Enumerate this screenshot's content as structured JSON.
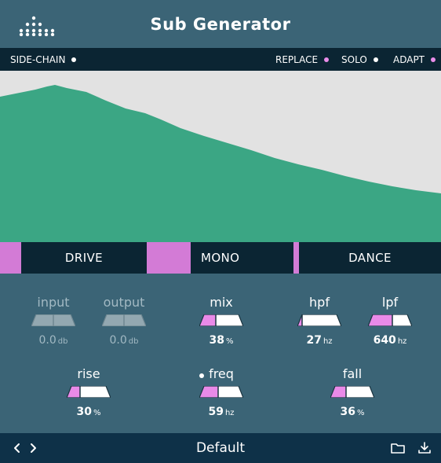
{
  "app": {
    "title": "Sub Generator",
    "logo_icon": "dot-grid-logo-icon"
  },
  "options": {
    "side_chain": {
      "label": "SIDE-CHAIN",
      "indicator": "white"
    },
    "replace": {
      "label": "REPLACE",
      "indicator": "pink"
    },
    "solo": {
      "label": "SOLO",
      "indicator": "white"
    },
    "adapt": {
      "label": "ADAPT",
      "indicator": "pink"
    }
  },
  "colors": {
    "background": "#3b6476",
    "bar": "#0b2533",
    "accent": "#d37bd6",
    "spectrum_fill": "#3ba684",
    "spectrum_bg": "#e2e2e2"
  },
  "modes": [
    {
      "label": "DRIVE",
      "active": false
    },
    {
      "label": "MONO",
      "active": true
    },
    {
      "label": "DANCE",
      "active": false
    }
  ],
  "controls": {
    "input": {
      "label": "input",
      "value": "0.0",
      "unit": "db",
      "level": 0.5,
      "enabled": false
    },
    "output": {
      "label": "output",
      "value": "0.0",
      "unit": "db",
      "level": 0.5,
      "enabled": false
    },
    "mix": {
      "label": "mix",
      "value": "38",
      "unit": "%",
      "level": 0.38,
      "enabled": true
    },
    "hpf": {
      "label": "hpf",
      "value": "27",
      "unit": "hz",
      "level": 0.1,
      "enabled": true
    },
    "lpf": {
      "label": "lpf",
      "value": "640",
      "unit": "hz",
      "level": 0.55,
      "enabled": true
    },
    "rise": {
      "label": "rise",
      "value": "30",
      "unit": "%",
      "level": 0.3,
      "enabled": true
    },
    "freq": {
      "label": "freq",
      "value": "59",
      "unit": "hz",
      "level": 0.42,
      "enabled": true
    },
    "fall": {
      "label": "fall",
      "value": "36",
      "unit": "%",
      "level": 0.36,
      "enabled": true
    }
  },
  "footer": {
    "preset": "Default",
    "prev_icon": "chevron-left-icon",
    "next_icon": "chevron-right-icon",
    "folder_icon": "folder-icon",
    "save_icon": "download-icon"
  }
}
